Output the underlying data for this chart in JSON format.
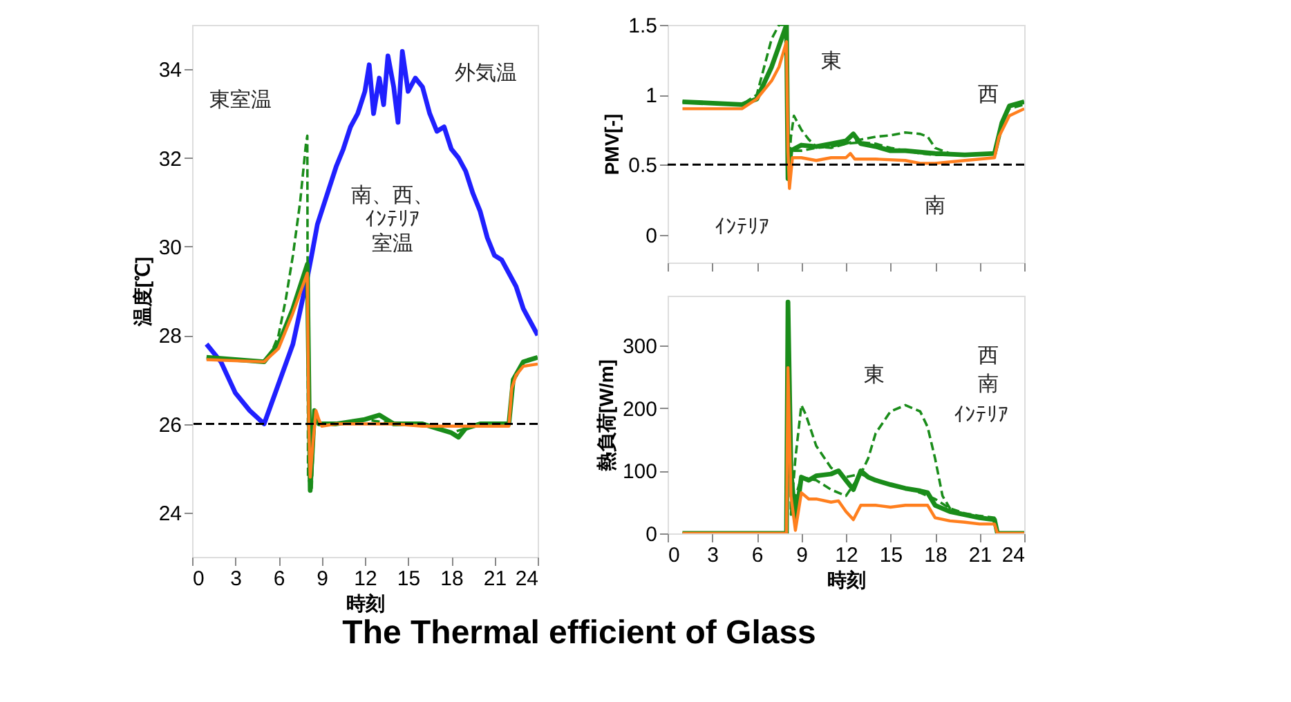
{
  "chart_data": [
    {
      "type": "line",
      "title": "The Thermal efficient of Glass",
      "xlabel": "時刻",
      "ylabel": "温度[℃]",
      "xlim": [
        0,
        24
      ],
      "xticks": [
        0,
        3,
        6,
        9,
        12,
        15,
        18,
        21,
        24
      ],
      "ylim": [
        23,
        35
      ],
      "yticks": [
        24,
        26,
        28,
        30,
        32,
        34
      ],
      "grid": false,
      "series": [
        {
          "color": "#2020ff",
          "line_style": "solid",
          "x": [
            1,
            2,
            3,
            4,
            5,
            6,
            7,
            8,
            8.3,
            8.7,
            9,
            9.5,
            10,
            10.5,
            11,
            11.5,
            12,
            12.3,
            12.6,
            13,
            13.3,
            13.6,
            14,
            14.3,
            14.6,
            15,
            15.5,
            16,
            16.5,
            17,
            17.5,
            18,
            18.5,
            19,
            19.5,
            20,
            20.5,
            21,
            21.5,
            22,
            22.5,
            23,
            24
          ],
          "values": [
            27.8,
            27.4,
            26.7,
            26.3,
            26.0,
            26.9,
            27.8,
            29.3,
            29.8,
            30.5,
            30.8,
            31.3,
            31.8,
            32.2,
            32.7,
            33.0,
            33.5,
            34.1,
            33.0,
            33.8,
            33.2,
            34.3,
            33.6,
            32.8,
            34.4,
            33.5,
            33.8,
            33.6,
            33.0,
            32.6,
            32.7,
            32.2,
            32.0,
            31.7,
            31.2,
            30.8,
            30.2,
            29.8,
            29.7,
            29.4,
            29.1,
            28.6,
            28.0
          ]
        },
        {
          "color": "#1a8c1a",
          "line_style": "dashed",
          "x": [
            1,
            3,
            5,
            5.5,
            6,
            6.5,
            7,
            7.5,
            7.9,
            8.0,
            8.05,
            8.3,
            8.5,
            8.8,
            10,
            12,
            14,
            16,
            18,
            20,
            22,
            22.3,
            23,
            24
          ],
          "values": [
            27.5,
            27.45,
            27.4,
            27.6,
            28.0,
            28.8,
            29.8,
            31.0,
            32.3,
            32.5,
            24.8,
            24.5,
            26.2,
            26.0,
            26.0,
            26.1,
            26.0,
            26.0,
            25.8,
            26.0,
            26.0,
            27.0,
            27.4,
            27.5
          ]
        },
        {
          "color": "#1a8c1a",
          "line_style": "solid",
          "x": [
            1,
            3,
            5,
            6,
            7,
            8,
            8.2,
            8.5,
            8.8,
            10,
            12,
            13,
            14,
            16,
            17,
            18,
            18.5,
            19,
            20,
            22,
            22.3,
            23,
            24
          ],
          "values": [
            27.5,
            27.45,
            27.4,
            27.8,
            28.6,
            29.6,
            24.5,
            26.3,
            26.0,
            26.0,
            26.1,
            26.2,
            26.0,
            26.0,
            25.9,
            25.8,
            25.7,
            25.9,
            26.0,
            26.0,
            27.0,
            27.4,
            27.5
          ]
        },
        {
          "color": "#ff7f1e",
          "line_style": "solid",
          "x": [
            1,
            5,
            6,
            7,
            8,
            8.1,
            8.2,
            8.4,
            8.6,
            8.8,
            9,
            10,
            12,
            14,
            16,
            18,
            20,
            22,
            22.2,
            22.5,
            23,
            24
          ],
          "values": [
            27.45,
            27.4,
            27.7,
            28.5,
            29.4,
            26.0,
            24.8,
            25.6,
            26.3,
            26.1,
            25.95,
            26.0,
            26.0,
            26.0,
            25.95,
            25.95,
            25.95,
            25.95,
            26.8,
            27.1,
            27.3,
            27.35
          ]
        }
      ],
      "ref_lines": [
        {
          "axis": "y",
          "value": 26,
          "color": "#000000",
          "line_style": "dashed"
        }
      ],
      "annotations": [
        "東室温",
        "外気温",
        "南、西、",
        "ｲﾝﾃﾘｱ",
        "室温"
      ]
    },
    {
      "type": "line",
      "ylabel": "PMV[-]",
      "xlim": [
        0,
        24
      ],
      "xticks": [
        0,
        3,
        6,
        9,
        12,
        15,
        18,
        21,
        24
      ],
      "ylim": [
        -0.2,
        1.5
      ],
      "yticks": [
        0,
        0.5,
        1,
        1.5
      ],
      "tick_labels": "y",
      "grid": false,
      "series": [
        {
          "color": "#1a8c1a",
          "line_style": "dashed",
          "x": [
            1,
            5,
            6,
            6.5,
            7,
            7.5,
            8,
            8.1,
            8.3,
            8.5,
            9,
            9.5,
            10,
            11,
            12,
            13,
            14,
            15,
            16,
            17,
            18,
            20,
            22,
            22.5,
            23,
            24
          ],
          "values": [
            0.95,
            0.93,
            1.0,
            1.2,
            1.4,
            1.5,
            1.5,
            0.4,
            0.7,
            0.85,
            0.75,
            0.68,
            0.63,
            0.62,
            0.65,
            0.66,
            0.65,
            0.62,
            0.6,
            0.58,
            0.57,
            0.57,
            0.58,
            0.8,
            0.9,
            0.93
          ]
        },
        {
          "color": "#1a8c1a",
          "line_style": "dashed",
          "x": [
            8.5,
            9,
            10,
            11,
            12,
            13,
            14,
            15,
            16,
            17,
            17.5,
            18,
            19,
            20,
            22
          ],
          "values": [
            0.6,
            0.6,
            0.62,
            0.63,
            0.65,
            0.68,
            0.7,
            0.71,
            0.73,
            0.72,
            0.7,
            0.62,
            0.58,
            0.57,
            0.58
          ]
        },
        {
          "color": "#1a8c1a",
          "line_style": "solid",
          "x": [
            1,
            5,
            6,
            7,
            7.5,
            8,
            8.1,
            8.3,
            9,
            10,
            11,
            12,
            12.5,
            13,
            14,
            15,
            16,
            17,
            18,
            20,
            22,
            22.5,
            23,
            24
          ],
          "values": [
            0.95,
            0.93,
            0.97,
            1.2,
            1.35,
            1.5,
            0.4,
            0.6,
            0.64,
            0.63,
            0.65,
            0.67,
            0.72,
            0.65,
            0.63,
            0.6,
            0.6,
            0.59,
            0.58,
            0.57,
            0.58,
            0.8,
            0.92,
            0.95
          ]
        },
        {
          "color": "#ff7f1e",
          "line_style": "solid",
          "x": [
            1,
            5,
            6,
            7,
            7.5,
            8,
            8.1,
            8.2,
            8.4,
            9,
            10,
            11,
            12,
            12.3,
            12.6,
            14,
            16,
            17,
            18,
            20,
            22,
            22.3,
            23,
            24
          ],
          "values": [
            0.9,
            0.9,
            0.97,
            1.1,
            1.2,
            1.38,
            0.6,
            0.33,
            0.55,
            0.55,
            0.53,
            0.55,
            0.55,
            0.58,
            0.54,
            0.54,
            0.53,
            0.51,
            0.51,
            0.53,
            0.55,
            0.7,
            0.85,
            0.9
          ]
        }
      ],
      "ref_lines": [
        {
          "axis": "y",
          "value": 0.5,
          "color": "#000000",
          "line_style": "dashed"
        }
      ],
      "annotations": [
        "東",
        "西",
        "南",
        "ｲﾝﾃﾘｱ"
      ]
    },
    {
      "type": "line",
      "xlabel": "時刻",
      "ylabel": "熱負荷[W/m]",
      "xlim": [
        0,
        24
      ],
      "xticks": [
        0,
        3,
        6,
        9,
        12,
        15,
        18,
        21,
        24
      ],
      "ylim": [
        0,
        380
      ],
      "yticks": [
        0,
        100,
        200,
        300
      ],
      "grid": false,
      "series": [
        {
          "color": "#1a8c1a",
          "line_style": "dashed",
          "x": [
            1,
            8,
            8.1,
            8.3,
            8.6,
            9,
            9.3,
            10,
            11,
            12,
            13,
            14,
            15,
            16,
            17,
            18,
            19,
            20,
            21,
            22,
            22.2,
            24
          ],
          "values": [
            0,
            0,
            370,
            30,
            120,
            205,
            190,
            140,
            105,
            90,
            95,
            85,
            78,
            72,
            65,
            55,
            40,
            32,
            28,
            25,
            0,
            0
          ]
        },
        {
          "color": "#1a8c1a",
          "line_style": "dashed",
          "x": [
            8.5,
            9,
            10,
            11,
            12,
            13,
            13.5,
            14,
            15,
            16,
            17,
            17.5,
            18,
            18.5,
            19,
            20,
            22,
            22.2,
            24
          ],
          "values": [
            50,
            90,
            85,
            70,
            60,
            95,
            120,
            160,
            195,
            205,
            195,
            170,
            120,
            60,
            40,
            30,
            22,
            0,
            0
          ]
        },
        {
          "color": "#1a8c1a",
          "line_style": "solid",
          "x": [
            1,
            8,
            8.1,
            8.3,
            8.6,
            9,
            9.5,
            10,
            11,
            11.5,
            12,
            12.5,
            13,
            13.5,
            14,
            15,
            16,
            17,
            17.5,
            18,
            19,
            20,
            21,
            22,
            22.2,
            24
          ],
          "values": [
            0,
            0,
            370,
            100,
            20,
            90,
            85,
            92,
            95,
            100,
            85,
            70,
            100,
            90,
            85,
            78,
            72,
            68,
            65,
            45,
            35,
            30,
            25,
            22,
            0,
            0
          ]
        },
        {
          "color": "#ff7f1e",
          "line_style": "solid",
          "x": [
            1,
            8,
            8.1,
            8.3,
            8.6,
            9,
            9.5,
            10,
            11,
            11.5,
            12,
            12.5,
            13,
            14,
            15,
            16,
            17,
            17.5,
            18,
            19,
            20,
            21,
            22,
            22.2,
            24
          ],
          "values": [
            0,
            0,
            265,
            60,
            5,
            65,
            55,
            55,
            50,
            52,
            35,
            22,
            45,
            45,
            42,
            45,
            45,
            45,
            25,
            20,
            18,
            15,
            15,
            0,
            0
          ]
        }
      ],
      "annotations": [
        "東",
        "西",
        "南",
        "ｲﾝﾃﾘｱ"
      ]
    }
  ]
}
